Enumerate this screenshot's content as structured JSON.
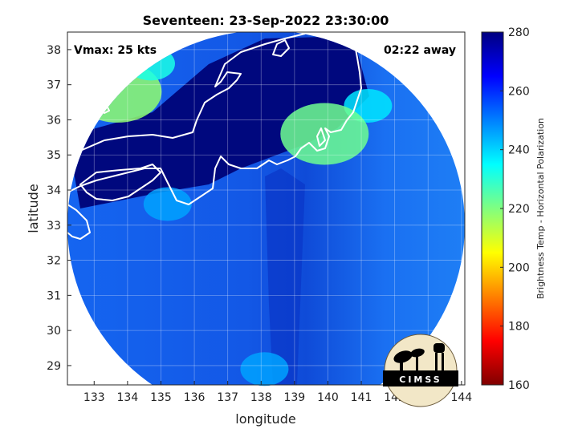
{
  "chart_data": {
    "type": "heatmap",
    "title": "Seventeen: 23-Sep-2022 23:30:00",
    "xlabel": "longitude",
    "ylabel": "latitude",
    "xlim": [
      132.2,
      144.1
    ],
    "ylim": [
      28.45,
      38.5
    ],
    "xticks": [
      133,
      134,
      135,
      136,
      137,
      138,
      139,
      140,
      141,
      142,
      143,
      144
    ],
    "yticks": [
      29,
      30,
      31,
      32,
      33,
      34,
      35,
      36,
      37,
      38
    ],
    "grid": true,
    "colormap": "jet",
    "colorbar": {
      "label": "Brightness Temp - Horizontal Polarization",
      "range": [
        160,
        280
      ],
      "ticks": [
        160,
        180,
        200,
        220,
        240,
        260,
        280
      ],
      "position": "right"
    },
    "swath": {
      "center_lon": 138.15,
      "center_lat": 33.0,
      "radius_lon": 5.95,
      "radius_lat": 5.55
    },
    "annotations": {
      "vmax": "Vmax: 25 kts",
      "time_away": "02:22 away"
    },
    "logo_text": "CIMSS",
    "cold_spots": [
      {
        "lon": 133.7,
        "lat": 36.8,
        "temp": 218
      },
      {
        "lon": 134.7,
        "lat": 37.6,
        "temp": 232
      },
      {
        "lon": 141.2,
        "lat": 36.4,
        "temp": 238
      },
      {
        "lon": 139.9,
        "lat": 35.6,
        "temp": 222
      },
      {
        "lon": 138.1,
        "lat": 28.9,
        "temp": 246
      },
      {
        "lon": 135.2,
        "lat": 33.6,
        "temp": 246
      }
    ]
  }
}
